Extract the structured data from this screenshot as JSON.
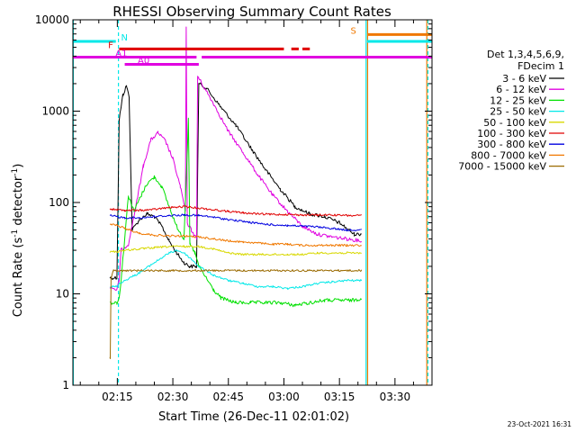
{
  "chart_data": {
    "type": "line",
    "title": "RHESSI Observing Summary Count Rates",
    "xlabel": "Start Time (26-Dec-11 02:01:02)",
    "ylabel_main": "Count Rate (s",
    "ylabel_sup1": "-1",
    "ylabel_mid": " detector",
    "ylabel_sup2": "-1",
    "ylabel_end": ")",
    "yscale": "log",
    "ylim": [
      1,
      10000
    ],
    "xlim_minutes": [
      2.0,
      99.0
    ],
    "y_ticks": [
      {
        "value": 1,
        "label": "1"
      },
      {
        "value": 10,
        "label": "10"
      },
      {
        "value": 100,
        "label": "100"
      },
      {
        "value": 1000,
        "label": "1000"
      },
      {
        "value": 10000,
        "label": "10000"
      }
    ],
    "x_ticks": [
      {
        "value": 14,
        "label": "02:15"
      },
      {
        "value": 29,
        "label": "02:30"
      },
      {
        "value": 44,
        "label": "02:45"
      },
      {
        "value": 59,
        "label": "03:00"
      },
      {
        "value": 74,
        "label": "03:15"
      },
      {
        "value": 89,
        "label": "03:30"
      }
    ],
    "legend": {
      "placement": "right",
      "header1": "Det 1,3,4,5,6,9,",
      "header2": "FDecim 1",
      "entries": [
        {
          "label": "3 - 6 keV",
          "color": "#000000"
        },
        {
          "label": "6 - 12 keV",
          "color": "#e000e0"
        },
        {
          "label": "12 - 25 keV",
          "color": "#00e000"
        },
        {
          "label": "25 - 50 keV",
          "color": "#00e8e8"
        },
        {
          "label": "50 - 100 keV",
          "color": "#d8d800"
        },
        {
          "label": "100 - 300 keV",
          "color": "#e00000"
        },
        {
          "label": "300 - 800 keV",
          "color": "#0000e0"
        },
        {
          "label": "800 - 7000 keV",
          "color": "#f07800"
        },
        {
          "label": "7000 - 15000 keV",
          "color": "#9a6a00"
        }
      ]
    },
    "series": [
      {
        "name": "3 - 6 keV",
        "color": "#000000",
        "points": [
          [
            12,
            15
          ],
          [
            13.9,
            15
          ],
          [
            14.5,
            800
          ],
          [
            15.5,
            1500
          ],
          [
            16.5,
            1900
          ],
          [
            17.2,
            1400
          ],
          [
            18,
            50
          ],
          [
            20,
            65
          ],
          [
            22,
            75
          ],
          [
            24,
            70
          ],
          [
            26,
            55
          ],
          [
            28,
            38
          ],
          [
            30,
            28
          ],
          [
            32,
            22
          ],
          [
            33.5,
            20
          ],
          [
            35.4,
            20
          ],
          [
            36,
            2000
          ],
          [
            38,
            1800
          ],
          [
            42,
            1100
          ],
          [
            46,
            700
          ],
          [
            50,
            400
          ],
          [
            54,
            230
          ],
          [
            58,
            140
          ],
          [
            62,
            90
          ],
          [
            66,
            75
          ],
          [
            70,
            70
          ],
          [
            74,
            60
          ],
          [
            78,
            45
          ],
          [
            80,
            45
          ]
        ]
      },
      {
        "name": "6 - 12 keV",
        "color": "#e000e0",
        "points": [
          [
            12,
            12
          ],
          [
            13.9,
            11
          ],
          [
            14.5,
            14
          ],
          [
            15,
            30
          ],
          [
            17,
            35
          ],
          [
            19,
            90
          ],
          [
            21,
            250
          ],
          [
            23,
            480
          ],
          [
            25,
            580
          ],
          [
            27,
            470
          ],
          [
            29,
            300
          ],
          [
            31,
            150
          ],
          [
            32.4,
            80
          ],
          [
            32.6,
            8000
          ],
          [
            32.9,
            60
          ],
          [
            34,
            50
          ],
          [
            35.4,
            40
          ],
          [
            35.7,
            2400
          ],
          [
            36,
            2300
          ],
          [
            40,
            1200
          ],
          [
            44,
            600
          ],
          [
            48,
            350
          ],
          [
            52,
            200
          ],
          [
            56,
            120
          ],
          [
            60,
            80
          ],
          [
            64,
            55
          ],
          [
            68,
            45
          ],
          [
            72,
            42
          ],
          [
            76,
            40
          ],
          [
            80,
            38
          ]
        ]
      },
      {
        "name": "12 - 25 keV",
        "color": "#00e000",
        "points": [
          [
            12,
            8
          ],
          [
            13.9,
            8
          ],
          [
            14.5,
            9
          ],
          [
            15,
            14
          ],
          [
            17,
            120
          ],
          [
            18.5,
            80
          ],
          [
            20,
            110
          ],
          [
            22,
            160
          ],
          [
            24,
            190
          ],
          [
            26,
            150
          ],
          [
            28,
            90
          ],
          [
            30,
            55
          ],
          [
            32,
            40
          ],
          [
            33.2,
            800
          ],
          [
            33.6,
            35
          ],
          [
            35,
            28
          ],
          [
            36,
            20
          ],
          [
            38,
            15
          ],
          [
            40,
            11
          ],
          [
            42,
            9
          ],
          [
            46,
            8
          ],
          [
            50,
            8
          ],
          [
            54,
            8
          ],
          [
            58,
            8
          ],
          [
            62,
            7.5
          ],
          [
            66,
            8
          ],
          [
            70,
            8.5
          ],
          [
            74,
            8.5
          ],
          [
            78,
            8.5
          ],
          [
            80,
            9
          ]
        ]
      },
      {
        "name": "25 - 50 keV",
        "color": "#00e8e8",
        "points": [
          [
            12,
            12
          ],
          [
            13.9,
            12
          ],
          [
            14.5,
            13
          ],
          [
            16,
            14
          ],
          [
            20,
            17
          ],
          [
            24,
            22
          ],
          [
            28,
            28
          ],
          [
            30,
            30
          ],
          [
            32,
            28
          ],
          [
            34,
            24
          ],
          [
            36,
            20
          ],
          [
            40,
            16
          ],
          [
            44,
            14
          ],
          [
            48,
            13
          ],
          [
            52,
            12
          ],
          [
            56,
            12
          ],
          [
            60,
            11.5
          ],
          [
            64,
            12
          ],
          [
            68,
            13
          ],
          [
            72,
            13.5
          ],
          [
            76,
            14
          ],
          [
            80,
            14
          ]
        ]
      },
      {
        "name": "50 - 100 keV",
        "color": "#d8d800",
        "points": [
          [
            12,
            29
          ],
          [
            14,
            29
          ],
          [
            16,
            30
          ],
          [
            20,
            31
          ],
          [
            24,
            32
          ],
          [
            28,
            33
          ],
          [
            32,
            33
          ],
          [
            36,
            33
          ],
          [
            40,
            31
          ],
          [
            44,
            28
          ],
          [
            48,
            27
          ],
          [
            52,
            27
          ],
          [
            56,
            27
          ],
          [
            60,
            27
          ],
          [
            64,
            27
          ],
          [
            68,
            28
          ],
          [
            72,
            28
          ],
          [
            76,
            28
          ],
          [
            80,
            28
          ]
        ]
      },
      {
        "name": "100 - 300 keV",
        "color": "#e00000",
        "points": [
          [
            12,
            85
          ],
          [
            14,
            83
          ],
          [
            16,
            82
          ],
          [
            20,
            82
          ],
          [
            24,
            84
          ],
          [
            28,
            88
          ],
          [
            32,
            90
          ],
          [
            36,
            87
          ],
          [
            40,
            83
          ],
          [
            44,
            80
          ],
          [
            48,
            77
          ],
          [
            52,
            75
          ],
          [
            56,
            74
          ],
          [
            60,
            74
          ],
          [
            64,
            73
          ],
          [
            68,
            73
          ],
          [
            72,
            73
          ],
          [
            76,
            72
          ],
          [
            80,
            72
          ]
        ]
      },
      {
        "name": "300 - 800 keV",
        "color": "#0000e0",
        "points": [
          [
            12,
            72
          ],
          [
            14,
            70
          ],
          [
            16,
            68
          ],
          [
            20,
            68
          ],
          [
            24,
            70
          ],
          [
            28,
            72
          ],
          [
            32,
            73
          ],
          [
            36,
            72
          ],
          [
            40,
            69
          ],
          [
            44,
            65
          ],
          [
            48,
            62
          ],
          [
            52,
            59
          ],
          [
            56,
            57
          ],
          [
            60,
            56
          ],
          [
            64,
            55
          ],
          [
            68,
            54
          ],
          [
            72,
            52
          ],
          [
            76,
            50
          ],
          [
            80,
            50
          ]
        ]
      },
      {
        "name": "800 - 7000 keV",
        "color": "#f07800",
        "points": [
          [
            12,
            58
          ],
          [
            14,
            56
          ],
          [
            16,
            52
          ],
          [
            20,
            46
          ],
          [
            24,
            44
          ],
          [
            28,
            43
          ],
          [
            32,
            43
          ],
          [
            36,
            42
          ],
          [
            40,
            40
          ],
          [
            44,
            38
          ],
          [
            48,
            37
          ],
          [
            52,
            36
          ],
          [
            56,
            35
          ],
          [
            60,
            35
          ],
          [
            64,
            34
          ],
          [
            68,
            34
          ],
          [
            72,
            34
          ],
          [
            76,
            34
          ],
          [
            80,
            34
          ]
        ]
      },
      {
        "name": "7000 - 15000 keV",
        "color": "#9a6a00",
        "points": [
          [
            12,
            2
          ],
          [
            12.1,
            2
          ],
          [
            12.3,
            15
          ],
          [
            13,
            18
          ],
          [
            80,
            18
          ]
        ]
      }
    ],
    "flag_bars": [
      {
        "label": "N",
        "color": "#00e8e8",
        "value": 5800,
        "segments": [
          [
            2,
            13.6
          ]
        ],
        "label_at": 15
      },
      {
        "label": "F",
        "color": "#e00000",
        "value": 4800,
        "segments": [
          [
            14.5,
            59
          ],
          [
            61,
            63
          ],
          [
            64,
            66
          ]
        ],
        "label_at": 11.5
      },
      {
        "label": "A1",
        "color": "#e000e0",
        "value": 3900,
        "segments": [
          [
            2,
            35.4
          ],
          [
            36.8,
            99
          ]
        ],
        "label_at": 13.5
      },
      {
        "label": "A0",
        "color": "#e000e0",
        "value": 3250,
        "segments": [
          [
            16,
            36
          ]
        ],
        "label_at": 19.5
      },
      {
        "label": "S",
        "color": "#f07800",
        "value": 6900,
        "segments": [
          [
            81.5,
            99
          ]
        ],
        "label_at": 77
      },
      {
        "label": "",
        "color": "#00e8e8",
        "value": 5800,
        "segments": [
          [
            81.5,
            99
          ]
        ],
        "label_at": null
      }
    ],
    "vertical_markers": [
      {
        "value": 2.1,
        "color": "#00e8e8",
        "style": "solid"
      },
      {
        "value": 14.3,
        "color": "#00e8e8",
        "style": "dashed"
      },
      {
        "value": 81.2,
        "color": "#00e8e8",
        "style": "solid"
      },
      {
        "value": 81.6,
        "color": "#f07800",
        "style": "solid"
      },
      {
        "value": 97.6,
        "color": "#f07800",
        "style": "solid"
      },
      {
        "value": 97.9,
        "color": "#00e8e8",
        "style": "dashed"
      }
    ],
    "footer_date": "23-Oct-2021 16:31"
  }
}
